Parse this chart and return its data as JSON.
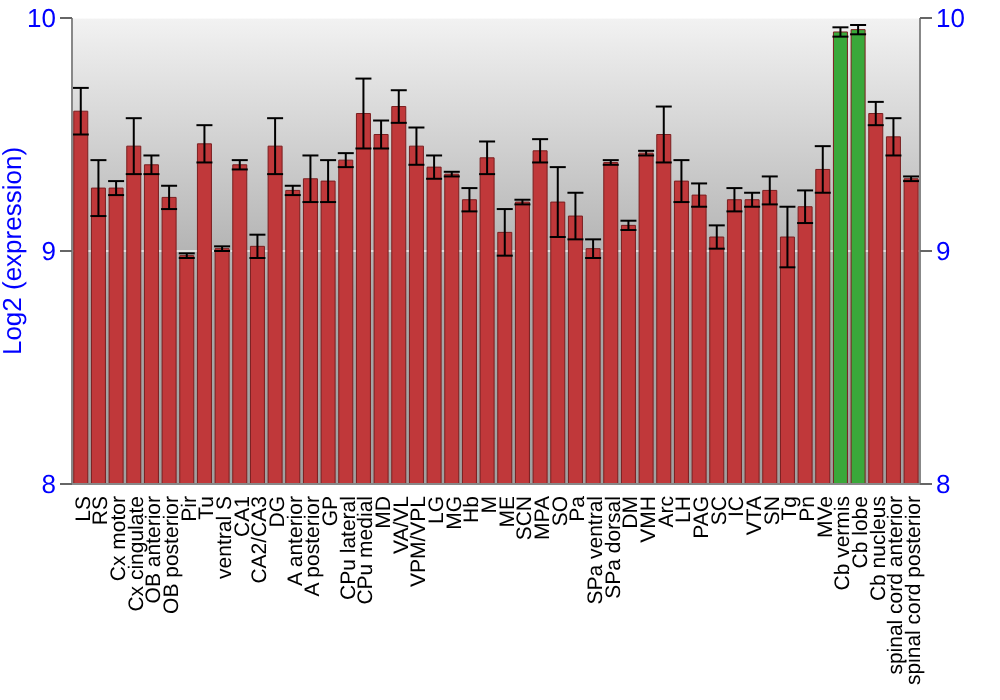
{
  "chart_data": {
    "type": "bar",
    "ylabel": "Log2 (expression)",
    "categories": [
      "LS",
      "RS",
      "Cx motor",
      "Cx cingulate",
      "OB anterior",
      "OB posterior",
      "Pir",
      "Tu",
      "ventral S",
      "CA1",
      "CA2/CA3",
      "DG",
      "A anterior",
      "A posterior",
      "GP",
      "CPu lateral",
      "CPu medial",
      "MD",
      "VA/VL",
      "VPM/VPL",
      "LG",
      "MG",
      "Hb",
      "M",
      "ME",
      "SCN",
      "MPA",
      "SO",
      "Pa",
      "SPa ventral",
      "SPa dorsal",
      "DM",
      "VMH",
      "Arc",
      "LH",
      "PAG",
      "SC",
      "IC",
      "VTA",
      "SN",
      "Tg",
      "Pn",
      "MVe",
      "Cb vermis",
      "Cb lobe",
      "Cb nucleus",
      "spinal cord anterior",
      "spinal cord posterior"
    ],
    "values": [
      9.6,
      9.27,
      9.27,
      9.45,
      9.37,
      9.23,
      8.98,
      9.46,
      9.01,
      9.37,
      9.02,
      9.45,
      9.26,
      9.31,
      9.3,
      9.39,
      9.59,
      9.5,
      9.62,
      9.45,
      9.36,
      9.33,
      9.22,
      9.4,
      9.08,
      9.21,
      9.43,
      9.21,
      9.15,
      9.01,
      9.38,
      9.11,
      9.42,
      9.5,
      9.3,
      9.24,
      9.06,
      9.22,
      9.22,
      9.26,
      9.06,
      9.19,
      9.35,
      9.94,
      9.95,
      9.59,
      9.49,
      9.31
    ],
    "errors": [
      0.1,
      0.12,
      0.03,
      0.12,
      0.04,
      0.05,
      0.01,
      0.08,
      0.01,
      0.02,
      0.05,
      0.12,
      0.02,
      0.1,
      0.09,
      0.03,
      0.15,
      0.06,
      0.07,
      0.08,
      0.05,
      0.01,
      0.05,
      0.07,
      0.1,
      0.01,
      0.05,
      0.15,
      0.1,
      0.04,
      0.01,
      0.02,
      0.01,
      0.12,
      0.09,
      0.05,
      0.05,
      0.05,
      0.03,
      0.06,
      0.13,
      0.07,
      0.1,
      0.02,
      0.02,
      0.05,
      0.08,
      0.01
    ],
    "colors": [
      "#c0383a",
      "#c0383a",
      "#c0383a",
      "#c0383a",
      "#c0383a",
      "#c0383a",
      "#c0383a",
      "#c0383a",
      "#c0383a",
      "#c0383a",
      "#c0383a",
      "#c0383a",
      "#c0383a",
      "#c0383a",
      "#c0383a",
      "#c0383a",
      "#c0383a",
      "#c0383a",
      "#c0383a",
      "#c0383a",
      "#c0383a",
      "#c0383a",
      "#c0383a",
      "#c0383a",
      "#c0383a",
      "#c0383a",
      "#c0383a",
      "#c0383a",
      "#c0383a",
      "#c0383a",
      "#c0383a",
      "#c0383a",
      "#c0383a",
      "#c0383a",
      "#c0383a",
      "#c0383a",
      "#c0383a",
      "#c0383a",
      "#c0383a",
      "#c0383a",
      "#c0383a",
      "#c0383a",
      "#c0383a",
      "#3aa83a",
      "#3aa83a",
      "#c0383a",
      "#c0383a",
      "#c0383a"
    ],
    "ylim": [
      8,
      10
    ],
    "yticks": [
      8,
      9,
      10
    ],
    "y2lim": [
      8,
      10
    ],
    "y2ticks": [
      8,
      9,
      10
    ],
    "grid": "y"
  }
}
